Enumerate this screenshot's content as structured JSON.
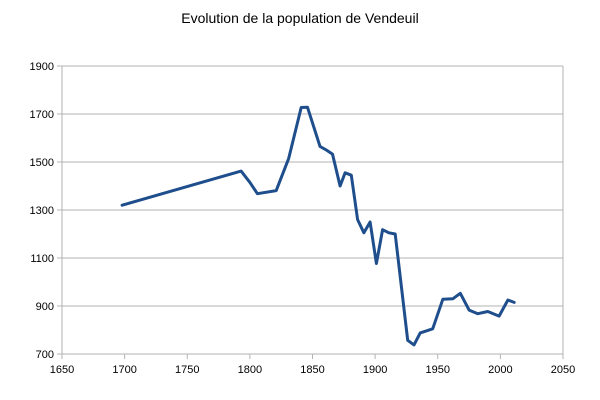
{
  "chart_data": {
    "type": "line",
    "title": "Evolution de la population de Vendeuil",
    "xlabel": "",
    "ylabel": "",
    "xlim": [
      1650,
      2050
    ],
    "ylim": [
      700,
      1900
    ],
    "x_ticks": [
      1650,
      1700,
      1750,
      1800,
      1850,
      1900,
      1950,
      2000,
      2050
    ],
    "y_ticks": [
      700,
      900,
      1100,
      1300,
      1500,
      1700,
      1900
    ],
    "grid": "horizontal",
    "line_color": "#1f4e8c",
    "series": [
      {
        "name": "",
        "x": [
          1698,
          1793,
          1800,
          1806,
          1821,
          1831,
          1841,
          1846,
          1856,
          1861,
          1866,
          1872,
          1876,
          1881,
          1886,
          1891,
          1896,
          1901,
          1906,
          1911,
          1916,
          1926,
          1931,
          1936,
          1946,
          1954,
          1962,
          1968,
          1975,
          1982,
          1990,
          1999,
          2006,
          2011
        ],
        "values": [
          1320,
          1462,
          1415,
          1368,
          1381,
          1515,
          1727,
          1728,
          1565,
          1550,
          1533,
          1400,
          1455,
          1445,
          1260,
          1205,
          1250,
          1077,
          1218,
          1205,
          1200,
          757,
          738,
          788,
          805,
          928,
          930,
          953,
          883,
          868,
          877,
          858,
          925,
          915
        ]
      }
    ]
  }
}
